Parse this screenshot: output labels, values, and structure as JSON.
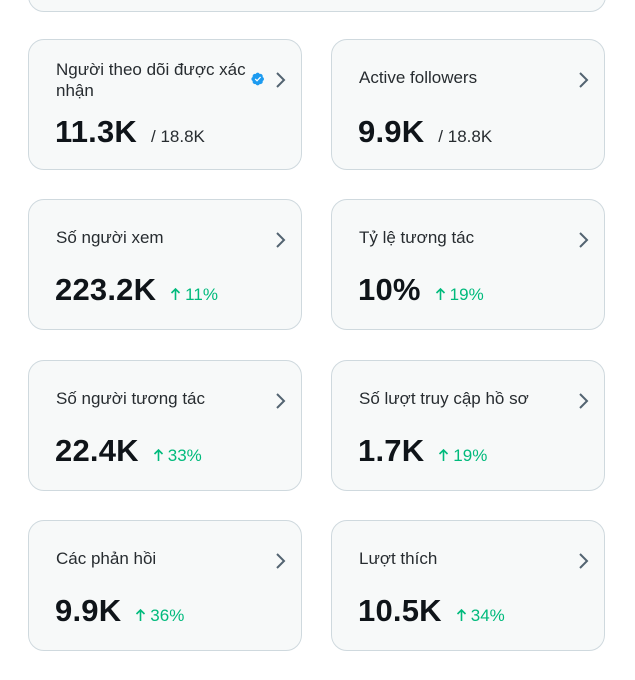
{
  "accent_color": "#1d9bf0",
  "positive_color": "#00ba7c",
  "cards": [
    {
      "label": "Người theo dõi được xác nhận",
      "value": "11.3K",
      "sub": "/ 18.8K",
      "verified": true
    },
    {
      "label": "Active followers",
      "value": "9.9K",
      "sub": "/ 18.8K"
    },
    {
      "label": "Số người xem",
      "value": "223.2K",
      "delta": "11%"
    },
    {
      "label": "Tỷ lệ tương tác",
      "value": "10%",
      "delta": "19%"
    },
    {
      "label": "Số người tương tác",
      "value": "22.4K",
      "delta": "33%"
    },
    {
      "label": "Số lượt truy cập hồ sơ",
      "value": "1.7K",
      "delta": "19%"
    },
    {
      "label": "Các phản hồi",
      "value": "9.9K",
      "delta": "36%"
    },
    {
      "label": "Lượt thích",
      "value": "10.5K",
      "delta": "34%"
    }
  ]
}
